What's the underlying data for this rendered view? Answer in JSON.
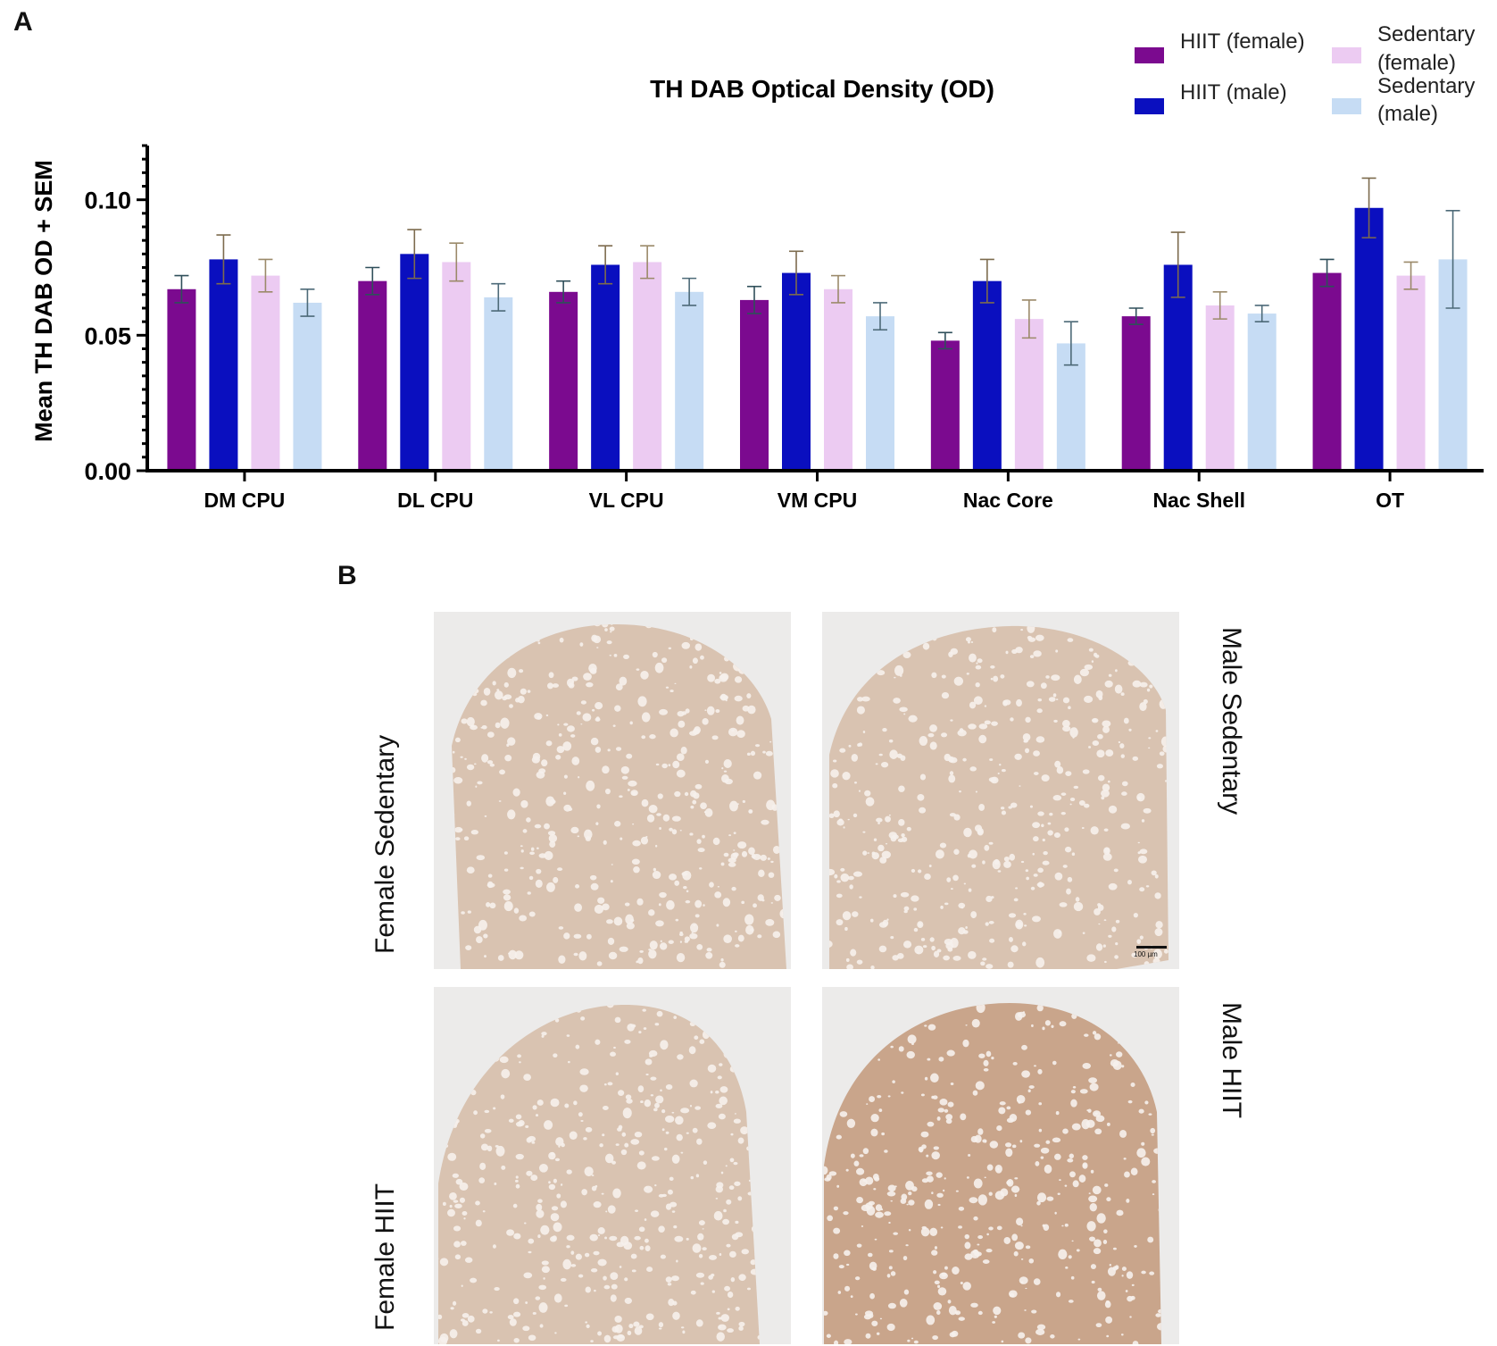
{
  "panels": {
    "a": "A",
    "b": "B"
  },
  "chart_data": {
    "type": "bar",
    "title": "TH DAB Optical Density (OD)",
    "ylabel": "Mean TH DAB OD + SEM",
    "xlabel": "",
    "ylim": [
      0,
      0.12
    ],
    "yticks": [
      0.0,
      0.05,
      0.1
    ],
    "ytick_labels": [
      "0.00",
      "0.05",
      "0.10"
    ],
    "categories": [
      "DM CPU",
      "DL CPU",
      "VL CPU",
      "VM CPU",
      "Nac Core",
      "Nac Shell",
      "OT"
    ],
    "legend_position": "top-right",
    "series": [
      {
        "name": "HIIT (female)",
        "color": "#7b0a8f",
        "err_color": "#2f4f5a",
        "values": [
          0.067,
          0.07,
          0.066,
          0.063,
          0.048,
          0.057,
          0.073
        ],
        "sem": [
          0.005,
          0.005,
          0.004,
          0.005,
          0.003,
          0.003,
          0.005
        ]
      },
      {
        "name": "HIIT (male)",
        "color": "#0a0fbf",
        "err_color": "#7d6b4e",
        "values": [
          0.078,
          0.08,
          0.076,
          0.073,
          0.07,
          0.076,
          0.097
        ],
        "sem": [
          0.009,
          0.009,
          0.007,
          0.008,
          0.008,
          0.012,
          0.011
        ]
      },
      {
        "name": "Sedentary (female)",
        "color": "#eccbf2",
        "err_color": "#9b8a6a",
        "values": [
          0.072,
          0.077,
          0.077,
          0.067,
          0.056,
          0.061,
          0.072
        ],
        "sem": [
          0.006,
          0.007,
          0.006,
          0.005,
          0.007,
          0.005,
          0.005
        ]
      },
      {
        "name": "Sedentary (male)",
        "color": "#c6dcf4",
        "err_color": "#4d6a78",
        "values": [
          0.062,
          0.064,
          0.066,
          0.057,
          0.047,
          0.058,
          0.078
        ],
        "sem": [
          0.005,
          0.005,
          0.005,
          0.005,
          0.008,
          0.003,
          0.018
        ]
      }
    ]
  },
  "legend_lines": [
    [
      "HIIT (female)"
    ],
    [
      "HIIT (male)"
    ],
    [
      "Sedentary",
      "(female)"
    ],
    [
      "Sedentary",
      "(male)"
    ]
  ],
  "micrographs": {
    "labels": {
      "female_sedentary": "Female Sedentary",
      "male_sedentary": "Male Sedentary",
      "female_hiit": "Female HIIT",
      "male_hiit": "Male HIIT"
    },
    "scale_bar": "100 µm",
    "colors": {
      "background": "#ecebea",
      "tissue_light": "#d9c3b1",
      "tissue_dark": "#c9a58b",
      "fiber": "#f6f1ec"
    }
  }
}
